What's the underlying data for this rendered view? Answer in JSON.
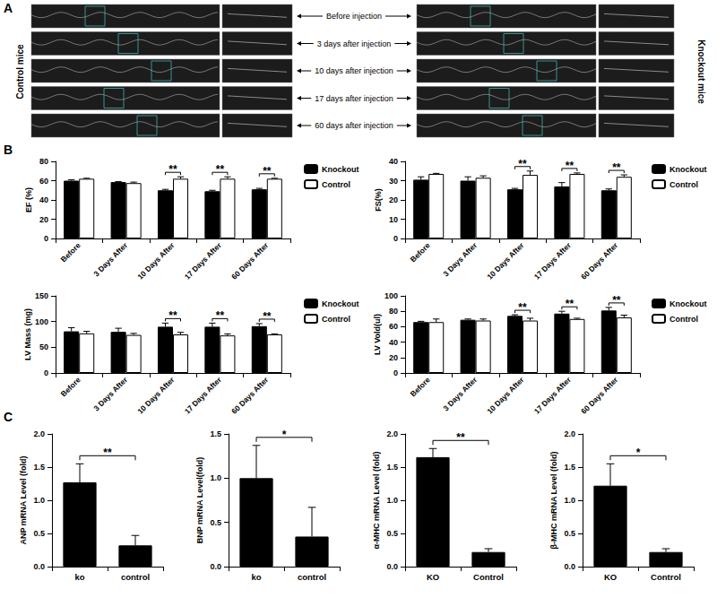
{
  "panel_labels": [
    "A",
    "B",
    "C"
  ],
  "panel_a": {
    "left_label": "Control mice",
    "right_label": "Knockout mice",
    "rows": [
      "Before injection",
      "3 days after injection",
      "10 days after injection",
      "17 days after injection",
      "60 days after injection"
    ]
  },
  "chart_data": [
    {
      "type": "bar",
      "ylabel": "EF (%)",
      "categories": [
        "Before",
        "3 Days After",
        "10 Days After",
        "17 Days After",
        "60 Days After"
      ],
      "series": [
        {
          "name": "Knockout",
          "color": "#000000",
          "values": [
            60,
            58.5,
            50,
            49,
            51
          ],
          "errors": [
            1,
            0.5,
            1,
            1,
            1
          ]
        },
        {
          "name": "Control",
          "color": "#ffffff",
          "values": [
            62,
            57.5,
            62,
            62,
            62
          ],
          "errors": [
            0.5,
            1,
            2,
            2,
            0.5
          ]
        }
      ],
      "ylim": [
        0,
        80
      ],
      "yticks": [
        0,
        20,
        40,
        60,
        80
      ],
      "legend": "right",
      "annotations": [
        {
          "category": "10 Days After",
          "text": "**"
        },
        {
          "category": "17 Days After",
          "text": "**"
        },
        {
          "category": "60 Days After",
          "text": "**"
        }
      ]
    },
    {
      "type": "bar",
      "ylabel": "FS(%)",
      "categories": [
        "Before",
        "3 Days After",
        "10 Days After",
        "17 Days After",
        "60 Days After"
      ],
      "series": [
        {
          "name": "Knockout",
          "color": "#000000",
          "values": [
            30.5,
            30,
            25.5,
            27,
            25
          ],
          "errors": [
            1.5,
            2,
            0.5,
            2,
            0.7
          ]
        },
        {
          "name": "Control",
          "color": "#ffffff",
          "values": [
            33.5,
            31.5,
            33,
            33.5,
            32
          ],
          "errors": [
            0.3,
            1,
            2,
            0.5,
            1
          ]
        }
      ],
      "ylim": [
        0,
        40
      ],
      "yticks": [
        0,
        10,
        20,
        30,
        40
      ],
      "legend": "right",
      "annotations": [
        {
          "category": "10 Days After",
          "text": "**"
        },
        {
          "category": "17 Days After",
          "text": "**"
        },
        {
          "category": "60 Days After",
          "text": "**"
        }
      ]
    },
    {
      "type": "bar",
      "ylabel": "LV Mass (mg)",
      "categories": [
        "Before",
        "3 Days After",
        "10 Days After",
        "17 Days After",
        "60 Days After"
      ],
      "series": [
        {
          "name": "Knockout",
          "color": "#000000",
          "values": [
            81,
            80,
            90,
            90,
            91
          ],
          "errors": [
            7,
            7,
            7,
            7,
            5
          ]
        },
        {
          "name": "Control",
          "color": "#ffffff",
          "values": [
            77,
            74,
            75,
            73,
            75
          ],
          "errors": [
            4,
            3,
            4,
            3,
            1
          ]
        }
      ],
      "ylim": [
        0,
        150
      ],
      "yticks": [
        0,
        50,
        100,
        150
      ],
      "legend": "right",
      "annotations": [
        {
          "category": "10 Days After",
          "text": "**"
        },
        {
          "category": "17 Days After",
          "text": "**"
        },
        {
          "category": "60 Days After",
          "text": "**"
        }
      ]
    },
    {
      "type": "bar",
      "ylabel": "LV Vold(ul)",
      "categories": [
        "Before",
        "3 Days After",
        "10 Days After",
        "17 Days After",
        "60 Days After"
      ],
      "series": [
        {
          "name": "Knockout",
          "color": "#000000",
          "values": [
            66,
            69,
            74,
            77,
            81
          ],
          "errors": [
            1,
            1,
            1.5,
            3,
            4
          ]
        },
        {
          "name": "Control",
          "color": "#ffffff",
          "values": [
            66,
            68,
            68,
            70,
            72
          ],
          "errors": [
            4,
            2,
            3,
            1,
            3
          ]
        }
      ],
      "ylim": [
        0,
        100
      ],
      "yticks": [
        0,
        20,
        40,
        60,
        80,
        100
      ],
      "legend": "right",
      "annotations": [
        {
          "category": "10 Days After",
          "text": "**"
        },
        {
          "category": "17 Days After",
          "text": "**"
        },
        {
          "category": "60 Days After",
          "text": "**"
        }
      ]
    },
    {
      "type": "bar",
      "ylabel": "ANP mRNA Level (fold)",
      "categories": [
        "ko",
        "control"
      ],
      "values": [
        1.27,
        0.32
      ],
      "errors": [
        0.28,
        0.15
      ],
      "color": "#000000",
      "ylim": [
        0,
        2
      ],
      "yticks": [
        {
          "value": 0,
          "label": "0.0"
        },
        {
          "value": 0.5,
          "label": "0.5"
        },
        {
          "value": 1,
          "label": "1.0"
        },
        {
          "value": 1.5,
          "label": "1.5"
        },
        {
          "value": 2,
          "label": "2.0"
        }
      ],
      "annotations": [
        {
          "from": "ko",
          "to": "control",
          "text": "**"
        }
      ]
    },
    {
      "type": "bar",
      "ylabel": "BNP mRNA Level(fold)",
      "categories": [
        "ko",
        "control"
      ],
      "values": [
        1.0,
        0.34
      ],
      "errors": [
        0.37,
        0.33
      ],
      "color": "#000000",
      "ylim": [
        0,
        1.5
      ],
      "yticks": [
        {
          "value": 0,
          "label": "0.0"
        },
        {
          "value": 0.5,
          "label": "0.5"
        },
        {
          "value": 1,
          "label": "1.0"
        },
        {
          "value": 1.5,
          "label": "1.5"
        }
      ],
      "annotations": [
        {
          "from": "ko",
          "to": "control",
          "text": "*"
        }
      ]
    },
    {
      "type": "bar",
      "ylabel": "α-MHC mRNA Level (fold)",
      "categories": [
        "KO",
        "Control"
      ],
      "values": [
        1.65,
        0.22
      ],
      "errors": [
        0.13,
        0.05
      ],
      "color": "#000000",
      "ylim": [
        0,
        2
      ],
      "yticks": [
        {
          "value": 0,
          "label": "0.0"
        },
        {
          "value": 0.5,
          "label": "0.5"
        },
        {
          "value": 1,
          "label": "1.0"
        },
        {
          "value": 1.5,
          "label": "1.5"
        },
        {
          "value": 2,
          "label": "2.0"
        }
      ],
      "annotations": [
        {
          "from": "KO",
          "to": "Control",
          "text": "**"
        }
      ]
    },
    {
      "type": "bar",
      "ylabel": "β-MHC mRNA Level (fold)",
      "categories": [
        "KO",
        "Control"
      ],
      "values": [
        1.22,
        0.22
      ],
      "errors": [
        0.33,
        0.05
      ],
      "color": "#000000",
      "ylim": [
        0,
        2
      ],
      "yticks": [
        {
          "value": 0,
          "label": "0.0"
        },
        {
          "value": 0.5,
          "label": "0.5"
        },
        {
          "value": 1,
          "label": "1.0"
        },
        {
          "value": 1.5,
          "label": "1.5"
        },
        {
          "value": 2,
          "label": "2.0"
        }
      ],
      "annotations": [
        {
          "from": "KO",
          "to": "Control",
          "text": "*"
        }
      ]
    }
  ]
}
